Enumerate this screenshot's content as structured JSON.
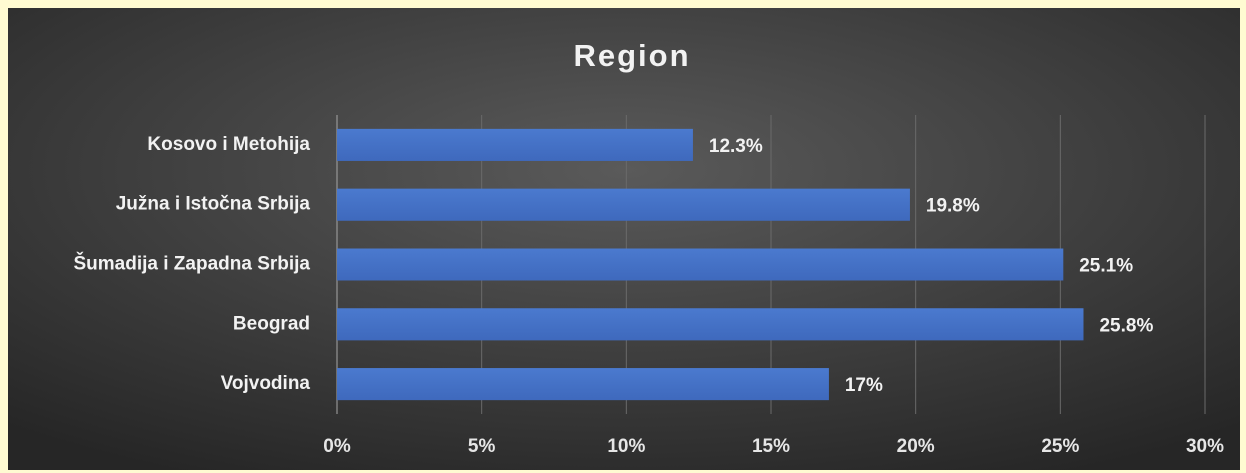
{
  "chart_data": {
    "type": "hbar",
    "title": "Region",
    "categories": [
      "Kosovo i Metohija",
      "Južna i Istočna Srbija",
      "Šumadija i Zapadna Srbija",
      "Beograd",
      "Vojvodina"
    ],
    "values": [
      12.3,
      19.8,
      25.1,
      25.8,
      17
    ],
    "value_labels": [
      "12.3%",
      "19.8%",
      "25.1%",
      "25.8%",
      "17%"
    ],
    "color": "#4472c4",
    "xlim": [
      0,
      30
    ],
    "xticks": [
      {
        "value": 0,
        "label": "0%"
      },
      {
        "value": 5,
        "label": "5%"
      },
      {
        "value": 10,
        "label": "10%"
      },
      {
        "value": 15,
        "label": "15%"
      },
      {
        "value": 20,
        "label": "20%"
      },
      {
        "value": 25,
        "label": "25%"
      },
      {
        "value": 30,
        "label": "30%"
      }
    ],
    "grid": true
  }
}
